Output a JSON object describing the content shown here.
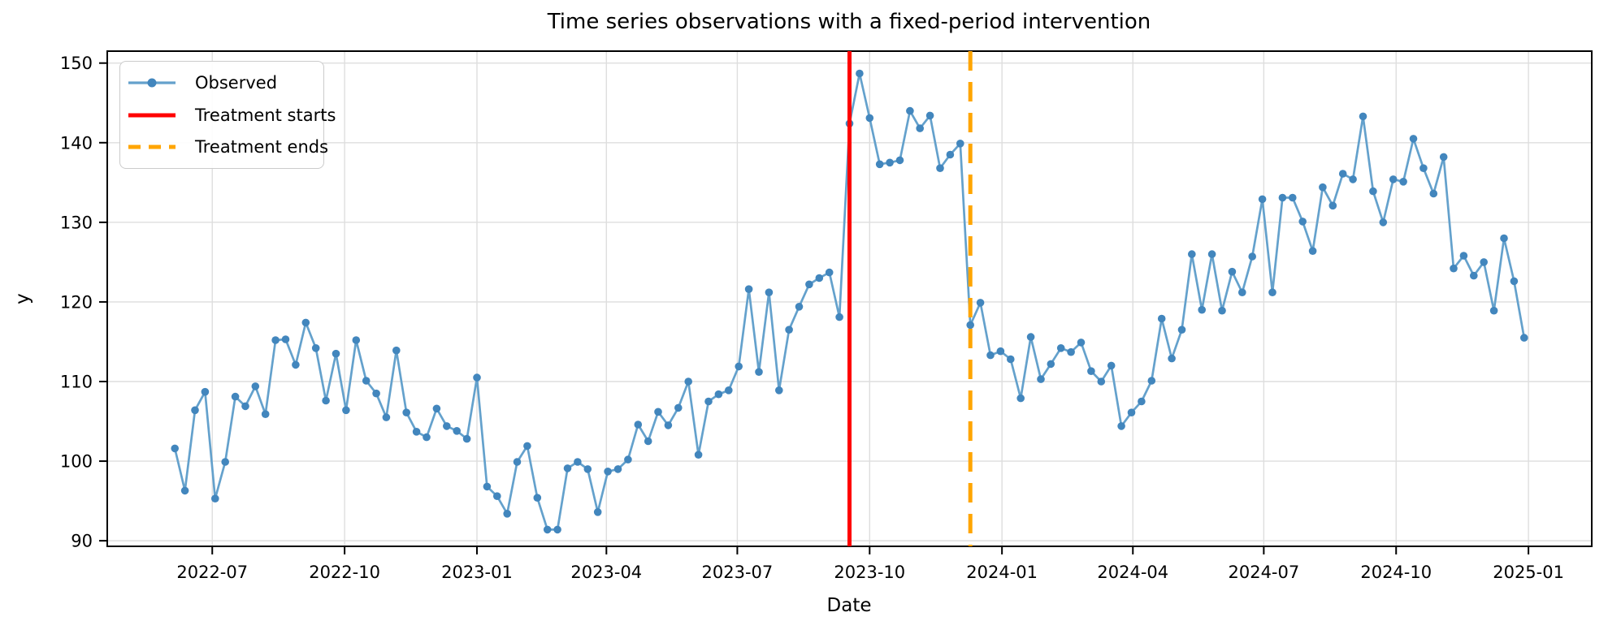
{
  "chart_data": {
    "type": "line",
    "title": "Time series observations with a fixed-period intervention",
    "xlabel": "Date",
    "ylabel": "y",
    "grid": true,
    "legend_position": "upper left",
    "ylim": [
      89.3,
      151.5
    ],
    "xlim": [
      "2022-04-19",
      "2025-02-14"
    ],
    "y_ticks": [
      90,
      100,
      110,
      120,
      130,
      140,
      150
    ],
    "x_ticks": [
      {
        "date": "2022-07-01",
        "label": "2022-07"
      },
      {
        "date": "2022-10-01",
        "label": "2022-10"
      },
      {
        "date": "2023-01-01",
        "label": "2023-01"
      },
      {
        "date": "2023-04-01",
        "label": "2023-04"
      },
      {
        "date": "2023-07-01",
        "label": "2023-07"
      },
      {
        "date": "2023-10-01",
        "label": "2023-10"
      },
      {
        "date": "2024-01-01",
        "label": "2024-01"
      },
      {
        "date": "2024-04-01",
        "label": "2024-04"
      },
      {
        "date": "2024-07-01",
        "label": "2024-07"
      },
      {
        "date": "2024-10-01",
        "label": "2024-10"
      },
      {
        "date": "2025-01-01",
        "label": "2025-01"
      }
    ],
    "series": [
      {
        "name": "Observed",
        "color": "#1f77b4",
        "rendered_line_color": "#64a1cc",
        "rendered_marker_color": "#4286bd",
        "marker": "o",
        "start_date": "2022-06-05",
        "step_days": 7,
        "values": [
          101.6,
          96.3,
          106.4,
          108.7,
          95.3,
          99.9,
          108.1,
          106.9,
          109.4,
          105.9,
          115.2,
          115.3,
          112.1,
          117.4,
          114.2,
          107.6,
          113.5,
          106.4,
          115.2,
          110.1,
          108.5,
          105.5,
          113.9,
          106.1,
          103.7,
          103.0,
          106.6,
          104.4,
          103.8,
          102.8,
          110.5,
          96.8,
          95.6,
          93.4,
          99.9,
          101.9,
          95.4,
          91.4,
          91.4,
          99.1,
          99.9,
          99.0,
          93.6,
          98.7,
          99.0,
          100.2,
          104.6,
          102.5,
          106.2,
          104.5,
          106.7,
          110.0,
          100.8,
          107.5,
          108.4,
          108.9,
          111.9,
          121.6,
          111.2,
          121.2,
          108.9,
          116.5,
          119.4,
          122.2,
          123.0,
          123.7,
          118.1,
          142.4,
          148.7,
          143.1,
          137.3,
          137.5,
          137.8,
          144.0,
          141.8,
          143.4,
          136.8,
          138.5,
          139.9,
          117.1,
          119.9,
          113.3,
          113.8,
          112.8,
          107.9,
          115.6,
          110.3,
          112.2,
          114.2,
          113.7,
          114.9,
          111.3,
          110.0,
          112.0,
          104.4,
          106.1,
          107.5,
          110.1,
          117.9,
          112.9,
          116.5,
          126.0,
          119.0,
          126.0,
          118.9,
          123.8,
          121.2,
          125.7,
          132.9,
          121.2,
          133.1,
          133.1,
          130.1,
          126.4,
          134.4,
          132.1,
          136.1,
          135.4,
          143.3,
          133.9,
          130.0,
          135.4,
          135.1,
          140.5,
          136.8,
          133.6,
          138.2,
          124.2,
          125.8,
          123.3,
          125.0,
          118.9,
          128.0,
          122.6,
          115.5
        ]
      }
    ],
    "vlines": [
      {
        "name": "Treatment starts",
        "date": "2023-09-17",
        "color": "#ff0000",
        "style": "solid",
        "linewidth": 5
      },
      {
        "name": "Treatment ends",
        "date": "2023-12-10",
        "color": "#ffa500",
        "style": "dashed",
        "linewidth": 5
      }
    ]
  },
  "legend": {
    "items": [
      {
        "label": "Observed"
      },
      {
        "label": "Treatment starts"
      },
      {
        "label": "Treatment ends"
      }
    ]
  },
  "colors": {
    "grid": "#dedede",
    "spine": "#000000",
    "observed_line": "#64a1cc",
    "observed_marker": "#4286bd",
    "treatment_start": "#ff0000",
    "treatment_end": "#ffa500"
  }
}
